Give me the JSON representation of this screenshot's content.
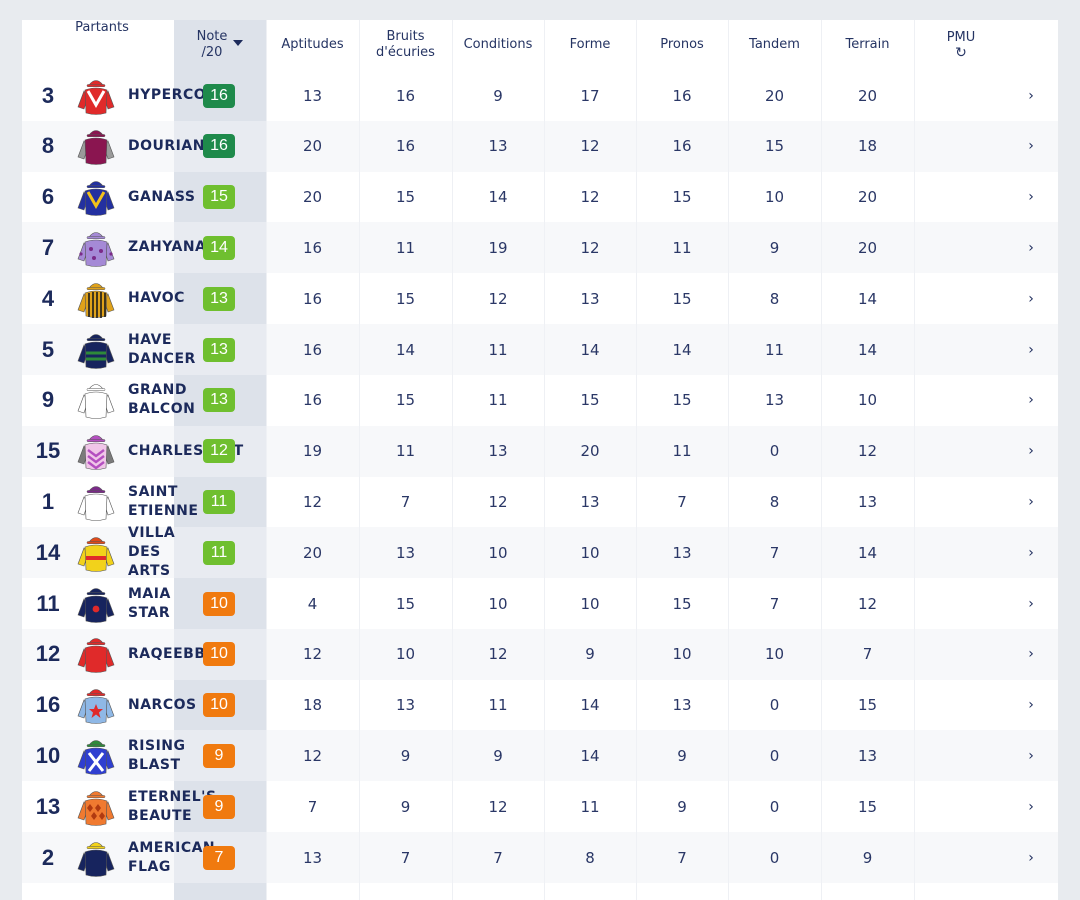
{
  "colors": {
    "page_bg": "#e8ebef",
    "note_column_bg": "#dde2ea",
    "text": "#1c2a5b",
    "score_dark_green": "#1e8a4b",
    "score_light_green": "#6fbf2f",
    "score_orange": "#f07a0f"
  },
  "header": {
    "partants": "Partants",
    "note_line1": "Note",
    "note_line2": "/20",
    "sort_icon": "caret-down-icon",
    "columns": [
      {
        "key": "aptitudes",
        "line1": "Aptitudes",
        "line2": ""
      },
      {
        "key": "bruits",
        "line1": "Bruits",
        "line2": "d'écuries"
      },
      {
        "key": "conditions",
        "line1": "Conditions",
        "line2": ""
      },
      {
        "key": "forme",
        "line1": "Forme",
        "line2": ""
      },
      {
        "key": "pronos",
        "line1": "Pronos",
        "line2": ""
      },
      {
        "key": "tandem",
        "line1": "Tandem",
        "line2": ""
      },
      {
        "key": "terrain",
        "line1": "Terrain",
        "line2": ""
      }
    ],
    "pmu_label": "PMU",
    "pmu_icon": "refresh-icon",
    "pmu_icon_glyph": "↻"
  },
  "chevron_glyph": "›",
  "rows": [
    {
      "num": "3",
      "name": "HYPERCOR",
      "note": "16",
      "tier": "dark",
      "silk": {
        "body": "#e02a2a",
        "sleeve": "#e02a2a",
        "cap": "#e02a2a",
        "pattern": "chevron",
        "accent": "#ffffff"
      },
      "scores": [
        "13",
        "16",
        "9",
        "17",
        "16",
        "20",
        "20"
      ]
    },
    {
      "num": "8",
      "name": "DOURIANN",
      "note": "16",
      "tier": "dark",
      "silk": {
        "body": "#8a1550",
        "sleeve": "#9a9a9a",
        "cap": "#8a1550",
        "pattern": "plain",
        "accent": "#8a1550"
      },
      "scores": [
        "20",
        "16",
        "13",
        "12",
        "16",
        "15",
        "18"
      ]
    },
    {
      "num": "6",
      "name": "GANASS",
      "note": "15",
      "tier": "light",
      "silk": {
        "body": "#2330a0",
        "sleeve": "#2330a0",
        "cap": "#2330a0",
        "pattern": "chevron",
        "accent": "#f2c21b"
      },
      "scores": [
        "20",
        "15",
        "14",
        "12",
        "15",
        "10",
        "20"
      ]
    },
    {
      "num": "7",
      "name": "ZAHYANA",
      "note": "14",
      "tier": "light",
      "silk": {
        "body": "#a58ad6",
        "sleeve": "#a58ad6",
        "cap": "#a58ad6",
        "pattern": "dots",
        "accent": "#7a2a88"
      },
      "scores": [
        "16",
        "11",
        "19",
        "12",
        "11",
        "9",
        "20"
      ]
    },
    {
      "num": "4",
      "name": "HAVOC",
      "note": "13",
      "tier": "light",
      "silk": {
        "body": "#e0a21a",
        "sleeve": "#e0a21a",
        "cap": "#e0a21a",
        "pattern": "vstripes",
        "accent": "#1c1c1c"
      },
      "scores": [
        "16",
        "15",
        "12",
        "13",
        "15",
        "8",
        "14"
      ]
    },
    {
      "num": "5",
      "name": "HAVE\nDANCER",
      "note": "13",
      "tier": "light",
      "silk": {
        "body": "#17245e",
        "sleeve": "#17245e",
        "cap": "#17245e",
        "pattern": "hoops",
        "accent": "#2e8a3a"
      },
      "scores": [
        "16",
        "14",
        "11",
        "14",
        "14",
        "11",
        "14"
      ]
    },
    {
      "num": "9",
      "name": "GRAND\nBALCON",
      "note": "13",
      "tier": "light",
      "silk": {
        "body": "#ffffff",
        "sleeve": "#ffffff",
        "cap": "#ffffff",
        "pattern": "plain",
        "accent": "#333333"
      },
      "scores": [
        "16",
        "15",
        "11",
        "15",
        "15",
        "13",
        "10"
      ]
    },
    {
      "num": "15",
      "name": "CHARLESQUIT",
      "note": "12",
      "tier": "light",
      "silk": {
        "body": "#f0c6e8",
        "sleeve": "#7a7a7a",
        "cap": "#b44fc0",
        "pattern": "chevrons",
        "accent": "#b44fc0"
      },
      "scores": [
        "19",
        "11",
        "13",
        "20",
        "11",
        "0",
        "12"
      ]
    },
    {
      "num": "1",
      "name": "SAINT\nETIENNE",
      "note": "11",
      "tier": "light",
      "silk": {
        "body": "#ffffff",
        "sleeve": "#ffffff",
        "cap": "#7a2a88",
        "pattern": "plain",
        "accent": "#7a2a88"
      },
      "scores": [
        "12",
        "7",
        "12",
        "13",
        "7",
        "8",
        "13"
      ]
    },
    {
      "num": "14",
      "name": "VILLA\nDES\nARTS",
      "note": "11",
      "tier": "light",
      "silk": {
        "body": "#f2d21b",
        "sleeve": "#f2d21b",
        "cap": "#e04a1a",
        "pattern": "band",
        "accent": "#e02a2a"
      },
      "scores": [
        "20",
        "13",
        "10",
        "10",
        "13",
        "7",
        "14"
      ]
    },
    {
      "num": "11",
      "name": "MAIA\nSTAR",
      "note": "10",
      "tier": "orange",
      "silk": {
        "body": "#17245e",
        "sleeve": "#17245e",
        "cap": "#17245e",
        "pattern": "dot",
        "accent": "#e02a2a"
      },
      "scores": [
        "4",
        "15",
        "10",
        "10",
        "15",
        "7",
        "12"
      ]
    },
    {
      "num": "12",
      "name": "RAQEEBB",
      "note": "10",
      "tier": "orange",
      "silk": {
        "body": "#e02a2a",
        "sleeve": "#e02a2a",
        "cap": "#e02a2a",
        "pattern": "plain",
        "accent": "#e02a2a"
      },
      "scores": [
        "12",
        "10",
        "12",
        "9",
        "10",
        "10",
        "7"
      ]
    },
    {
      "num": "16",
      "name": "NARCOS",
      "note": "10",
      "tier": "orange",
      "silk": {
        "body": "#8fb8e6",
        "sleeve": "#8fb8e6",
        "cap": "#e02a2a",
        "pattern": "star",
        "accent": "#e02a2a"
      },
      "scores": [
        "18",
        "13",
        "11",
        "14",
        "13",
        "0",
        "15"
      ]
    },
    {
      "num": "10",
      "name": "RISING\nBLAST",
      "note": "9",
      "tier": "orange",
      "silk": {
        "body": "#2f3fd0",
        "sleeve": "#2f3fd0",
        "cap": "#2e8a3a",
        "pattern": "cross",
        "accent": "#ffffff"
      },
      "scores": [
        "12",
        "9",
        "9",
        "14",
        "9",
        "0",
        "13"
      ]
    },
    {
      "num": "13",
      "name": "ETERNEL'S\nBEAUTE",
      "note": "9",
      "tier": "orange",
      "silk": {
        "body": "#f07a30",
        "sleeve": "#f07a30",
        "cap": "#f07a30",
        "pattern": "diamonds",
        "accent": "#b03a10"
      },
      "scores": [
        "7",
        "9",
        "12",
        "11",
        "9",
        "0",
        "15"
      ]
    },
    {
      "num": "2",
      "name": "AMERICAN\nFLAG",
      "note": "7",
      "tier": "orange",
      "silk": {
        "body": "#17245e",
        "sleeve": "#17245e",
        "cap": "#f2d21b",
        "pattern": "plain",
        "accent": "#f2d21b"
      },
      "scores": [
        "13",
        "7",
        "7",
        "8",
        "7",
        "0",
        "9"
      ]
    }
  ]
}
